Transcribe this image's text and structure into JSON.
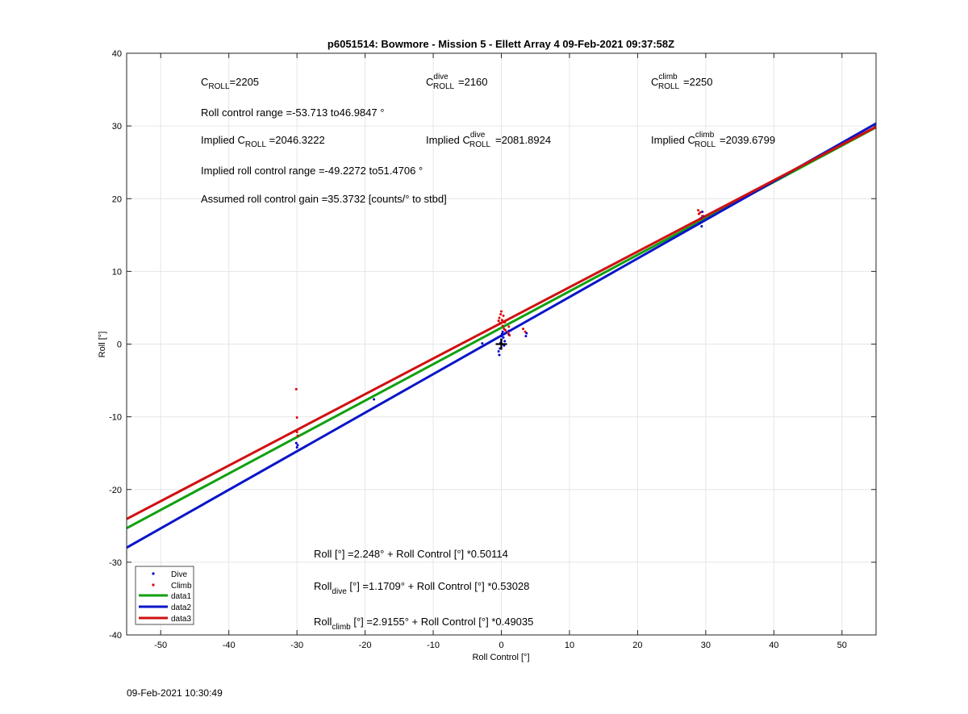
{
  "footer_timestamp": "09-Feb-2021 10:30:49",
  "annotations": {
    "c_roll": {
      "main": "C",
      "sub": "ROLL",
      "rest": "=2205"
    },
    "c_roll_dive": {
      "main": "C",
      "sup": "dive",
      "sub": "ROLL",
      "rest": "=2160"
    },
    "c_roll_climb": {
      "main": "C",
      "sup": "climb",
      "sub": "ROLL",
      "rest": "=2250"
    },
    "roll_control_range": "Roll control range =-53.713 to46.9847 °",
    "implied_c_roll": {
      "pre": "Implied C",
      "sub": "ROLL",
      "rest": " =2046.3222"
    },
    "implied_c_roll_dive": {
      "pre": "Implied C",
      "sup": "dive",
      "sub": "ROLL",
      "rest": "=2081.8924"
    },
    "implied_c_roll_climb": {
      "pre": "Implied C",
      "sup": "climb",
      "sub": "ROLL",
      "rest": "=2039.6799"
    },
    "implied_roll_control_range": "Implied roll control range =-49.2272 to51.4706 °",
    "assumed_gain": "Assumed roll control gain =35.3732 [counts/° to stbd]",
    "fit_all": {
      "pre": "Roll [°] =2.248° + Roll Control [°] *0.50114"
    },
    "fit_dive": {
      "pre": "Roll",
      "sub": "dive",
      "rest": " [°] =1.1709° + Roll Control [°] *0.53028"
    },
    "fit_climb": {
      "pre": "Roll",
      "sub": "climb",
      "rest": " [°] =2.9155° + Roll Control [°] *0.49035"
    }
  },
  "colors": {
    "dive": "#0000cc",
    "climb": "#dd0000",
    "data1": "#10a010",
    "data2": "#0a16c8",
    "data3": "#d01010"
  },
  "chart_data": {
    "type": "scatter",
    "title": "p6051514: Bowmore - Mission 5 - Ellett Array 4 09-Feb-2021 09:37:58Z",
    "xlabel": "Roll Control [°]",
    "ylabel": "Roll [°]",
    "xlim": [
      -55,
      55
    ],
    "ylim": [
      -40,
      40
    ],
    "xticks": [
      -50,
      -40,
      -30,
      -20,
      -10,
      0,
      10,
      20,
      30,
      40,
      50
    ],
    "yticks": [
      -40,
      -30,
      -20,
      -10,
      0,
      10,
      20,
      30,
      40
    ],
    "grid": true,
    "legend_position": "bottom-left",
    "series": [
      {
        "name": "Dive",
        "kind": "points",
        "color_key": "dive",
        "points": [
          [
            -30.1,
            -13.6
          ],
          [
            -30.0,
            -14.2
          ],
          [
            -29.9,
            -13.9
          ],
          [
            -18.7,
            -7.6
          ],
          [
            -2.8,
            0.1
          ],
          [
            -0.4,
            -1.0
          ],
          [
            -0.3,
            -1.5
          ],
          [
            -0.2,
            -0.6
          ],
          [
            -0.1,
            0.2
          ],
          [
            0.0,
            0.6
          ],
          [
            0.0,
            1.1
          ],
          [
            0.1,
            1.4
          ],
          [
            0.2,
            1.7
          ],
          [
            0.3,
            0.9
          ],
          [
            0.4,
            -0.2
          ],
          [
            0.5,
            0.4
          ],
          [
            1.1,
            1.8
          ],
          [
            1.1,
            1.3
          ],
          [
            3.6,
            1.1
          ],
          [
            3.7,
            1.5
          ],
          [
            29.1,
            16.6
          ],
          [
            29.3,
            17.3
          ],
          [
            29.4,
            16.2
          ],
          [
            29.5,
            18.2
          ],
          [
            29.6,
            17.6
          ]
        ]
      },
      {
        "name": "Climb",
        "kind": "points",
        "color_key": "climb",
        "points": [
          [
            -30.1,
            -6.2
          ],
          [
            -30.0,
            -10.1
          ],
          [
            -30.0,
            -12.1
          ],
          [
            -29.9,
            -12.6
          ],
          [
            -0.4,
            3.2
          ],
          [
            -0.3,
            3.6
          ],
          [
            -0.2,
            2.9
          ],
          [
            -0.1,
            4.1
          ],
          [
            0.0,
            4.5
          ],
          [
            0.1,
            3.3
          ],
          [
            0.2,
            2.5
          ],
          [
            0.3,
            3.9
          ],
          [
            0.4,
            2.1
          ],
          [
            0.5,
            3.0
          ],
          [
            0.6,
            1.9
          ],
          [
            1.0,
            1.6
          ],
          [
            1.1,
            2.4
          ],
          [
            1.2,
            1.2
          ],
          [
            3.2,
            2.1
          ],
          [
            3.5,
            1.7
          ],
          [
            28.9,
            18.4
          ],
          [
            29.0,
            17.9
          ],
          [
            29.2,
            18.1
          ],
          [
            29.3,
            17.2
          ],
          [
            29.5,
            17.6
          ]
        ]
      },
      {
        "name": "data1",
        "kind": "line",
        "color_key": "data1",
        "intercept": 2.248,
        "slope": 0.50114
      },
      {
        "name": "data2",
        "kind": "line",
        "color_key": "data2",
        "intercept": 1.1709,
        "slope": 0.53028
      },
      {
        "name": "data3",
        "kind": "line",
        "color_key": "data3",
        "intercept": 2.9155,
        "slope": 0.49035
      }
    ],
    "marker": {
      "x": 0,
      "y": 0,
      "symbol": "+"
    }
  }
}
